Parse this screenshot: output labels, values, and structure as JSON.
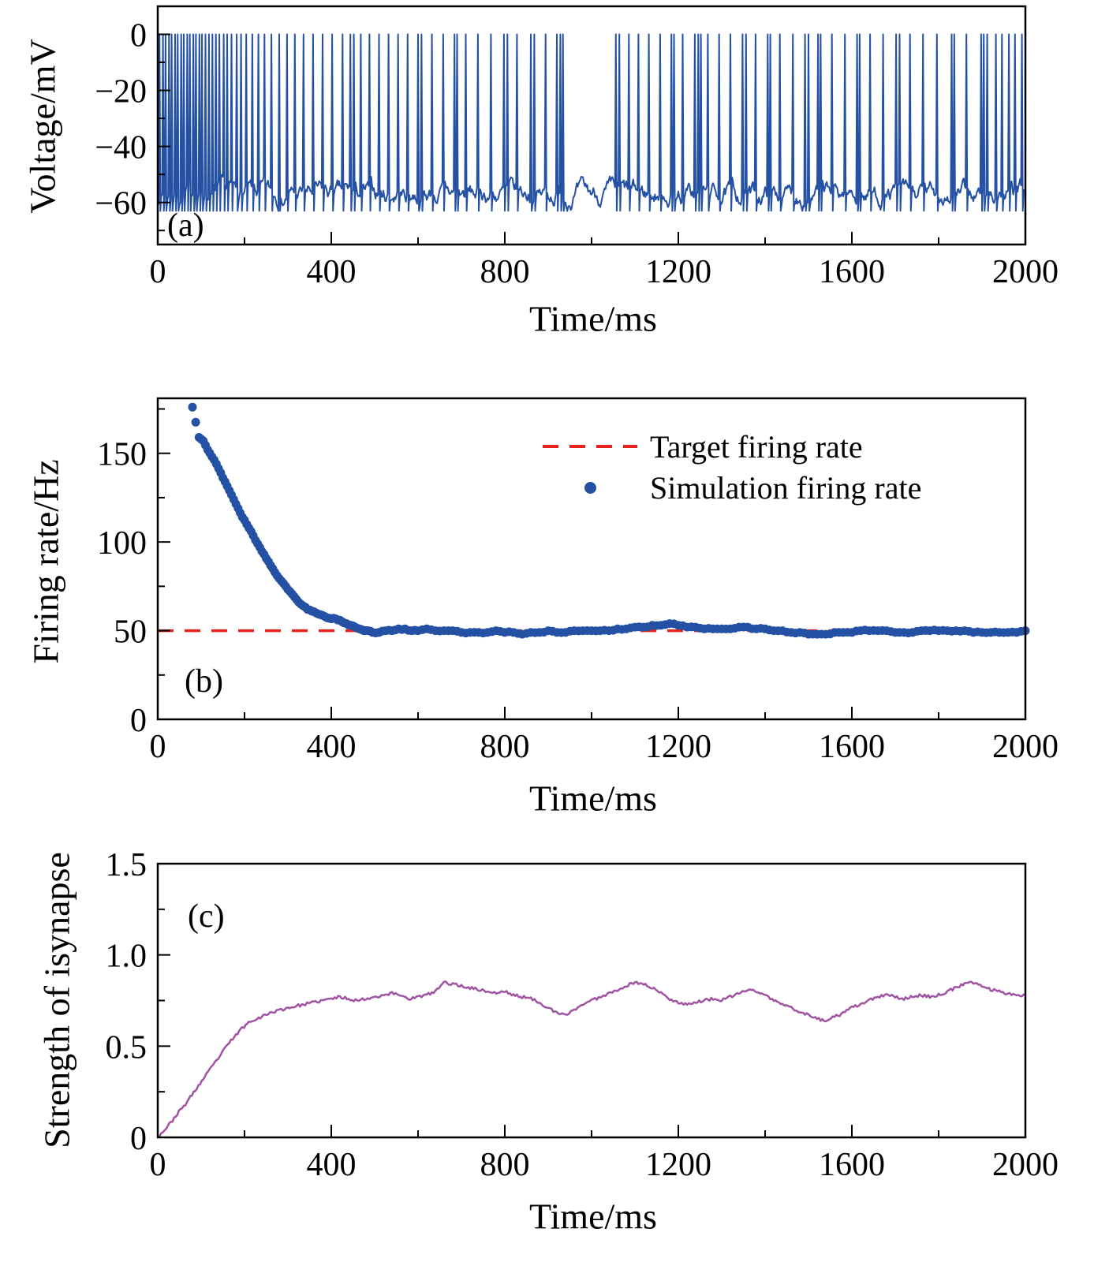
{
  "figure": {
    "background": "#ffffff"
  },
  "chart_data": [
    {
      "id": "membrane-voltage",
      "type": "line",
      "panel_label": "(a)",
      "xlabel": "Time/ms",
      "ylabel": "Voltage/mV",
      "xlim": [
        0,
        2000
      ],
      "ylim": [
        -75,
        10
      ],
      "xticks": [
        0,
        400,
        800,
        1200,
        1600,
        2000
      ],
      "xtick_labels": [
        "0",
        "400",
        "800",
        "1200",
        "1600",
        "2000"
      ],
      "x_minor": [
        200,
        600,
        1000,
        1400,
        1800
      ],
      "yticks": [
        0,
        -20,
        -40,
        -60
      ],
      "ytick_labels": [
        "0",
        "−20",
        "−40",
        "−60"
      ],
      "y_minor": [
        -10,
        -30,
        -50,
        -70
      ],
      "color": "#2451a4",
      "baseline_mV": -57,
      "noise_mV": 3,
      "spike_peak_mV": 0,
      "post_spike_dip_mV": -63,
      "spike_times_ms": [
        4,
        11,
        18,
        25,
        32,
        39,
        46,
        53,
        60,
        67,
        74,
        81,
        88,
        95,
        102,
        110,
        118,
        126,
        134,
        142,
        151,
        160,
        170,
        181,
        192,
        204,
        217,
        231,
        246,
        262,
        279,
        297,
        316,
        336,
        357,
        379,
        402,
        426,
        444,
        451,
        468,
        488,
        509,
        531,
        553,
        576,
        600,
        608,
        632,
        657,
        683,
        689,
        710,
        738,
        767,
        797,
        805,
        828,
        860,
        868,
        893,
        920,
        927,
        934,
        1056,
        1063,
        1085,
        1108,
        1132,
        1157,
        1183,
        1189,
        1210,
        1238,
        1245,
        1252,
        1267,
        1293,
        1320,
        1348,
        1355,
        1377,
        1405,
        1412,
        1434,
        1463,
        1492,
        1499,
        1522,
        1528,
        1553,
        1584,
        1612,
        1618,
        1641,
        1671,
        1702,
        1709,
        1733,
        1764,
        1796,
        1829,
        1836,
        1863,
        1897,
        1904,
        1912,
        1931,
        1946,
        1961,
        1976,
        1991
      ]
    },
    {
      "id": "firing-rate",
      "type": "scatter",
      "panel_label": "(b)",
      "xlabel": "Time/ms",
      "ylabel": "Firing rate/Hz",
      "xlim": [
        0,
        2000
      ],
      "ylim": [
        0,
        181
      ],
      "xticks": [
        0,
        400,
        800,
        1200,
        1600,
        2000
      ],
      "xtick_labels": [
        "0",
        "400",
        "800",
        "1200",
        "1600",
        "2000"
      ],
      "x_minor": [
        200,
        600,
        1000,
        1400,
        1800
      ],
      "yticks": [
        0,
        50,
        100,
        150
      ],
      "ytick_labels": [
        "0",
        "50",
        "100",
        "150"
      ],
      "y_minor": [
        25,
        75,
        125,
        175
      ],
      "target_rate_hz": 50,
      "target_color": "#e8231f",
      "dot_color": "#2451a4",
      "legend": {
        "target": "Target firing rate",
        "simulation": "Simulation firing rate"
      },
      "points": [
        [
          80,
          176
        ],
        [
          95,
          159
        ],
        [
          105,
          157
        ],
        [
          115,
          152
        ],
        [
          125,
          148
        ],
        [
          135,
          144
        ],
        [
          145,
          139
        ],
        [
          155,
          134
        ],
        [
          165,
          129
        ],
        [
          175,
          124
        ],
        [
          185,
          119
        ],
        [
          195,
          114
        ],
        [
          205,
          110
        ],
        [
          215,
          106
        ],
        [
          225,
          101
        ],
        [
          235,
          97
        ],
        [
          245,
          93
        ],
        [
          255,
          89
        ],
        [
          265,
          85
        ],
        [
          275,
          81
        ],
        [
          285,
          78
        ],
        [
          295,
          75
        ],
        [
          305,
          72
        ],
        [
          315,
          69
        ],
        [
          325,
          66
        ],
        [
          335,
          64
        ],
        [
          345,
          62
        ],
        [
          355,
          61
        ],
        [
          365,
          60
        ],
        [
          375,
          59
        ],
        [
          385,
          58
        ],
        [
          395,
          57
        ],
        [
          405,
          57
        ],
        [
          415,
          56
        ],
        [
          425,
          55
        ],
        [
          435,
          54
        ],
        [
          445,
          53
        ],
        [
          455,
          52
        ],
        [
          465,
          51
        ],
        [
          475,
          50
        ],
        [
          485,
          50
        ],
        [
          495,
          49
        ],
        [
          510,
          49
        ],
        [
          525,
          50
        ],
        [
          540,
          50
        ],
        [
          555,
          51
        ],
        [
          570,
          51
        ],
        [
          585,
          50
        ],
        [
          600,
          50
        ],
        [
          620,
          51
        ],
        [
          640,
          50
        ],
        [
          660,
          50
        ],
        [
          680,
          50
        ],
        [
          700,
          49
        ],
        [
          720,
          49
        ],
        [
          740,
          49
        ],
        [
          760,
          49
        ],
        [
          780,
          50
        ],
        [
          800,
          49
        ],
        [
          820,
          49
        ],
        [
          840,
          48
        ],
        [
          860,
          49
        ],
        [
          880,
          49
        ],
        [
          900,
          50
        ],
        [
          920,
          49
        ],
        [
          940,
          49
        ],
        [
          960,
          50
        ],
        [
          980,
          50
        ],
        [
          1000,
          50
        ],
        [
          1020,
          50
        ],
        [
          1040,
          50
        ],
        [
          1060,
          51
        ],
        [
          1080,
          51
        ],
        [
          1100,
          52
        ],
        [
          1120,
          52
        ],
        [
          1140,
          53
        ],
        [
          1160,
          53
        ],
        [
          1180,
          54
        ],
        [
          1200,
          53
        ],
        [
          1220,
          52
        ],
        [
          1240,
          52
        ],
        [
          1260,
          51
        ],
        [
          1280,
          51
        ],
        [
          1300,
          51
        ],
        [
          1320,
          51
        ],
        [
          1340,
          52
        ],
        [
          1360,
          52
        ],
        [
          1380,
          51
        ],
        [
          1400,
          51
        ],
        [
          1420,
          50
        ],
        [
          1440,
          50
        ],
        [
          1460,
          49
        ],
        [
          1480,
          49
        ],
        [
          1500,
          48
        ],
        [
          1520,
          48
        ],
        [
          1540,
          48
        ],
        [
          1560,
          49
        ],
        [
          1580,
          49
        ],
        [
          1600,
          49
        ],
        [
          1620,
          50
        ],
        [
          1640,
          50
        ],
        [
          1660,
          50
        ],
        [
          1680,
          50
        ],
        [
          1700,
          49
        ],
        [
          1720,
          49
        ],
        [
          1740,
          49
        ],
        [
          1760,
          50
        ],
        [
          1780,
          50
        ],
        [
          1800,
          50
        ],
        [
          1820,
          50
        ],
        [
          1840,
          50
        ],
        [
          1860,
          50
        ],
        [
          1880,
          49
        ],
        [
          1900,
          49
        ],
        [
          1920,
          49
        ],
        [
          1940,
          49
        ],
        [
          1960,
          49
        ],
        [
          1980,
          49
        ],
        [
          2000,
          50
        ]
      ]
    },
    {
      "id": "synapse-strength",
      "type": "line",
      "panel_label": "(c)",
      "xlabel": "Time/ms",
      "ylabel": "Strength of isynapse",
      "xlim": [
        0,
        2000
      ],
      "ylim": [
        0,
        1.5
      ],
      "xticks": [
        0,
        400,
        800,
        1200,
        1600,
        2000
      ],
      "xtick_labels": [
        "0",
        "400",
        "800",
        "1200",
        "1600",
        "2000"
      ],
      "x_minor": [
        200,
        600,
        1000,
        1400,
        1800
      ],
      "yticks": [
        0,
        0.5,
        1.0,
        1.5
      ],
      "ytick_labels": [
        "0",
        "0.5",
        "1.0",
        "1.5"
      ],
      "y_minor": [
        0.25,
        0.75,
        1.25
      ],
      "color": "#a153a3",
      "points": [
        [
          0,
          0
        ],
        [
          15,
          0.04
        ],
        [
          30,
          0.08
        ],
        [
          45,
          0.13
        ],
        [
          60,
          0.17
        ],
        [
          75,
          0.22
        ],
        [
          90,
          0.27
        ],
        [
          105,
          0.32
        ],
        [
          120,
          0.37
        ],
        [
          135,
          0.42
        ],
        [
          150,
          0.47
        ],
        [
          165,
          0.52
        ],
        [
          180,
          0.56
        ],
        [
          195,
          0.6
        ],
        [
          210,
          0.63
        ],
        [
          225,
          0.65
        ],
        [
          240,
          0.66
        ],
        [
          255,
          0.68
        ],
        [
          270,
          0.69
        ],
        [
          285,
          0.7
        ],
        [
          300,
          0.71
        ],
        [
          320,
          0.72
        ],
        [
          340,
          0.73
        ],
        [
          360,
          0.74
        ],
        [
          380,
          0.75
        ],
        [
          400,
          0.76
        ],
        [
          420,
          0.77
        ],
        [
          440,
          0.76
        ],
        [
          460,
          0.75
        ],
        [
          480,
          0.76
        ],
        [
          500,
          0.77
        ],
        [
          520,
          0.78
        ],
        [
          540,
          0.79
        ],
        [
          560,
          0.78
        ],
        [
          580,
          0.76
        ],
        [
          600,
          0.77
        ],
        [
          620,
          0.78
        ],
        [
          640,
          0.8
        ],
        [
          660,
          0.85
        ],
        [
          680,
          0.84
        ],
        [
          700,
          0.83
        ],
        [
          720,
          0.82
        ],
        [
          740,
          0.81
        ],
        [
          760,
          0.8
        ],
        [
          780,
          0.79
        ],
        [
          800,
          0.8
        ],
        [
          820,
          0.78
        ],
        [
          840,
          0.77
        ],
        [
          860,
          0.76
        ],
        [
          880,
          0.74
        ],
        [
          900,
          0.71
        ],
        [
          920,
          0.68
        ],
        [
          940,
          0.67
        ],
        [
          960,
          0.7
        ],
        [
          980,
          0.73
        ],
        [
          1000,
          0.75
        ],
        [
          1020,
          0.77
        ],
        [
          1040,
          0.79
        ],
        [
          1060,
          0.81
        ],
        [
          1080,
          0.83
        ],
        [
          1100,
          0.85
        ],
        [
          1120,
          0.84
        ],
        [
          1140,
          0.82
        ],
        [
          1160,
          0.79
        ],
        [
          1180,
          0.76
        ],
        [
          1200,
          0.74
        ],
        [
          1220,
          0.73
        ],
        [
          1240,
          0.74
        ],
        [
          1260,
          0.75
        ],
        [
          1280,
          0.76
        ],
        [
          1300,
          0.75
        ],
        [
          1320,
          0.77
        ],
        [
          1340,
          0.79
        ],
        [
          1360,
          0.81
        ],
        [
          1380,
          0.8
        ],
        [
          1400,
          0.78
        ],
        [
          1420,
          0.75
        ],
        [
          1440,
          0.73
        ],
        [
          1460,
          0.71
        ],
        [
          1480,
          0.69
        ],
        [
          1500,
          0.67
        ],
        [
          1520,
          0.65
        ],
        [
          1540,
          0.64
        ],
        [
          1560,
          0.66
        ],
        [
          1580,
          0.68
        ],
        [
          1600,
          0.71
        ],
        [
          1620,
          0.73
        ],
        [
          1640,
          0.75
        ],
        [
          1660,
          0.77
        ],
        [
          1680,
          0.78
        ],
        [
          1700,
          0.77
        ],
        [
          1720,
          0.76
        ],
        [
          1740,
          0.77
        ],
        [
          1760,
          0.78
        ],
        [
          1780,
          0.77
        ],
        [
          1800,
          0.78
        ],
        [
          1820,
          0.8
        ],
        [
          1840,
          0.82
        ],
        [
          1860,
          0.84
        ],
        [
          1880,
          0.85
        ],
        [
          1900,
          0.83
        ],
        [
          1920,
          0.81
        ],
        [
          1940,
          0.8
        ],
        [
          1960,
          0.79
        ],
        [
          1980,
          0.78
        ],
        [
          2000,
          0.78
        ]
      ]
    }
  ]
}
